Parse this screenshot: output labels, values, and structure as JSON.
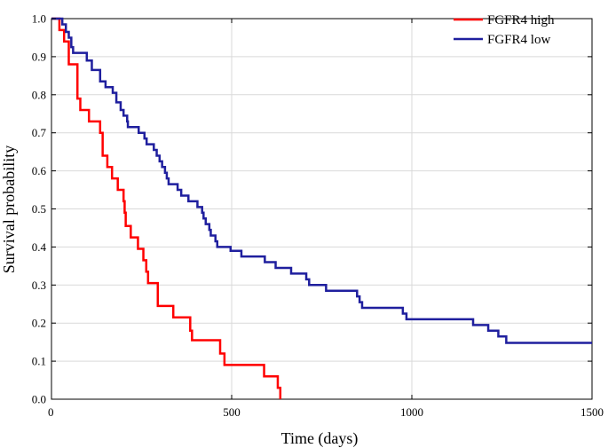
{
  "chart_data": {
    "type": "line",
    "step": true,
    "xlabel": "Time (days)",
    "ylabel": "Survival probability",
    "xlim": [
      0,
      1500
    ],
    "ylim": [
      0,
      1.0
    ],
    "xticks": [
      0,
      500,
      1000,
      1500
    ],
    "yticks": [
      0.0,
      0.1,
      0.2,
      0.3,
      0.4,
      0.5,
      0.6,
      0.7,
      0.8,
      0.9,
      1.0
    ],
    "ytick_labels": [
      "0.0",
      "0.1",
      "0.2",
      "0.3",
      "0.4",
      "0.5",
      "0.6",
      "0.7",
      "0.8",
      "0.9",
      "1.0"
    ],
    "grid": true,
    "legend_position": "top-right",
    "series": [
      {
        "name": "FGFR4 high",
        "color": "#ff0000",
        "points": [
          [
            0,
            1.0
          ],
          [
            22,
            1.0
          ],
          [
            22,
            0.97
          ],
          [
            35,
            0.97
          ],
          [
            35,
            0.94
          ],
          [
            48,
            0.94
          ],
          [
            48,
            0.88
          ],
          [
            72,
            0.88
          ],
          [
            72,
            0.79
          ],
          [
            80,
            0.79
          ],
          [
            80,
            0.76
          ],
          [
            104,
            0.76
          ],
          [
            104,
            0.73
          ],
          [
            135,
            0.73
          ],
          [
            135,
            0.7
          ],
          [
            142,
            0.7
          ],
          [
            142,
            0.64
          ],
          [
            155,
            0.64
          ],
          [
            155,
            0.61
          ],
          [
            168,
            0.61
          ],
          [
            168,
            0.58
          ],
          [
            184,
            0.58
          ],
          [
            184,
            0.55
          ],
          [
            200,
            0.55
          ],
          [
            200,
            0.52
          ],
          [
            203,
            0.52
          ],
          [
            203,
            0.49
          ],
          [
            206,
            0.49
          ],
          [
            206,
            0.455
          ],
          [
            220,
            0.455
          ],
          [
            220,
            0.425
          ],
          [
            240,
            0.425
          ],
          [
            240,
            0.395
          ],
          [
            255,
            0.395
          ],
          [
            255,
            0.365
          ],
          [
            263,
            0.365
          ],
          [
            263,
            0.335
          ],
          [
            268,
            0.335
          ],
          [
            268,
            0.305
          ],
          [
            295,
            0.305
          ],
          [
            295,
            0.245
          ],
          [
            338,
            0.245
          ],
          [
            338,
            0.215
          ],
          [
            385,
            0.215
          ],
          [
            385,
            0.18
          ],
          [
            390,
            0.18
          ],
          [
            390,
            0.155
          ],
          [
            468,
            0.155
          ],
          [
            468,
            0.12
          ],
          [
            480,
            0.12
          ],
          [
            480,
            0.09
          ],
          [
            590,
            0.09
          ],
          [
            590,
            0.06
          ],
          [
            628,
            0.06
          ],
          [
            628,
            0.03
          ],
          [
            635,
            0.03
          ],
          [
            635,
            0.0
          ]
        ]
      },
      {
        "name": "FGFR4 low",
        "color": "#1f1f9e",
        "points": [
          [
            0,
            1.0
          ],
          [
            30,
            1.0
          ],
          [
            30,
            0.985
          ],
          [
            40,
            0.985
          ],
          [
            40,
            0.965
          ],
          [
            48,
            0.965
          ],
          [
            48,
            0.95
          ],
          [
            55,
            0.95
          ],
          [
            55,
            0.925
          ],
          [
            60,
            0.925
          ],
          [
            60,
            0.91
          ],
          [
            98,
            0.91
          ],
          [
            98,
            0.89
          ],
          [
            112,
            0.89
          ],
          [
            112,
            0.865
          ],
          [
            135,
            0.865
          ],
          [
            135,
            0.835
          ],
          [
            150,
            0.835
          ],
          [
            150,
            0.82
          ],
          [
            170,
            0.82
          ],
          [
            170,
            0.805
          ],
          [
            180,
            0.805
          ],
          [
            180,
            0.78
          ],
          [
            192,
            0.78
          ],
          [
            192,
            0.76
          ],
          [
            200,
            0.76
          ],
          [
            200,
            0.745
          ],
          [
            210,
            0.745
          ],
          [
            210,
            0.73
          ],
          [
            212,
            0.73
          ],
          [
            212,
            0.715
          ],
          [
            242,
            0.715
          ],
          [
            242,
            0.7
          ],
          [
            258,
            0.7
          ],
          [
            258,
            0.685
          ],
          [
            264,
            0.685
          ],
          [
            264,
            0.67
          ],
          [
            284,
            0.67
          ],
          [
            284,
            0.655
          ],
          [
            292,
            0.655
          ],
          [
            292,
            0.64
          ],
          [
            300,
            0.64
          ],
          [
            300,
            0.625
          ],
          [
            307,
            0.625
          ],
          [
            307,
            0.61
          ],
          [
            315,
            0.61
          ],
          [
            315,
            0.595
          ],
          [
            320,
            0.595
          ],
          [
            320,
            0.58
          ],
          [
            325,
            0.58
          ],
          [
            325,
            0.565
          ],
          [
            350,
            0.565
          ],
          [
            350,
            0.55
          ],
          [
            360,
            0.55
          ],
          [
            360,
            0.535
          ],
          [
            380,
            0.535
          ],
          [
            380,
            0.52
          ],
          [
            405,
            0.52
          ],
          [
            405,
            0.505
          ],
          [
            418,
            0.505
          ],
          [
            418,
            0.49
          ],
          [
            422,
            0.49
          ],
          [
            422,
            0.475
          ],
          [
            428,
            0.475
          ],
          [
            428,
            0.46
          ],
          [
            438,
            0.46
          ],
          [
            438,
            0.445
          ],
          [
            442,
            0.445
          ],
          [
            442,
            0.43
          ],
          [
            455,
            0.43
          ],
          [
            455,
            0.415
          ],
          [
            460,
            0.415
          ],
          [
            460,
            0.4
          ],
          [
            497,
            0.4
          ],
          [
            497,
            0.39
          ],
          [
            527,
            0.39
          ],
          [
            527,
            0.375
          ],
          [
            592,
            0.375
          ],
          [
            592,
            0.36
          ],
          [
            622,
            0.36
          ],
          [
            622,
            0.345
          ],
          [
            665,
            0.345
          ],
          [
            665,
            0.33
          ],
          [
            707,
            0.33
          ],
          [
            707,
            0.315
          ],
          [
            715,
            0.315
          ],
          [
            715,
            0.3
          ],
          [
            762,
            0.3
          ],
          [
            762,
            0.285
          ],
          [
            848,
            0.285
          ],
          [
            848,
            0.27
          ],
          [
            855,
            0.27
          ],
          [
            855,
            0.255
          ],
          [
            862,
            0.255
          ],
          [
            862,
            0.24
          ],
          [
            975,
            0.24
          ],
          [
            975,
            0.225
          ],
          [
            985,
            0.225
          ],
          [
            985,
            0.21
          ],
          [
            1170,
            0.21
          ],
          [
            1170,
            0.195
          ],
          [
            1212,
            0.195
          ],
          [
            1212,
            0.18
          ],
          [
            1240,
            0.18
          ],
          [
            1240,
            0.165
          ],
          [
            1262,
            0.165
          ],
          [
            1262,
            0.148
          ],
          [
            1500,
            0.148
          ]
        ]
      }
    ]
  }
}
